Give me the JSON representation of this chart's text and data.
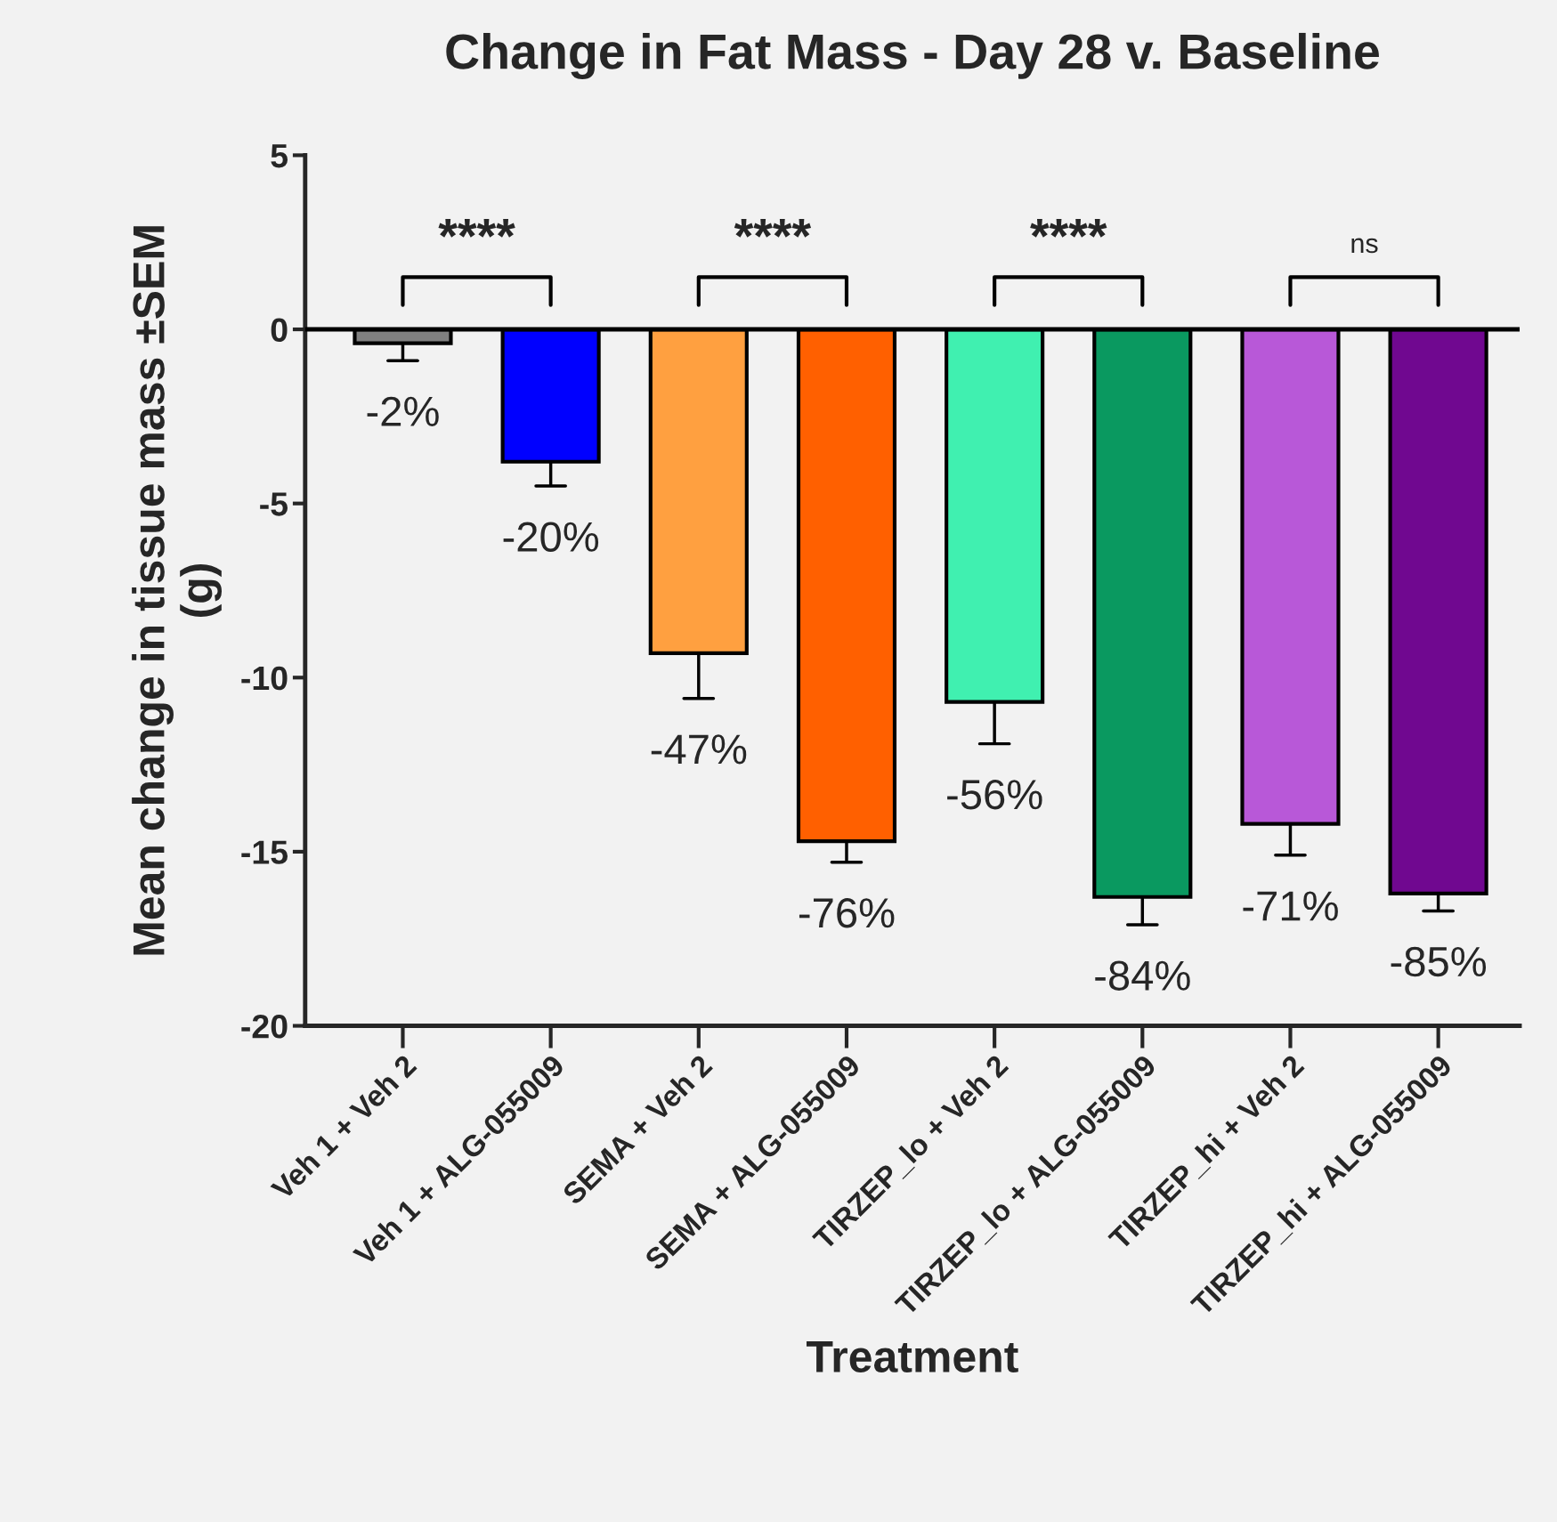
{
  "chart_data": {
    "type": "bar",
    "title": "Change in Fat Mass - Day 28 v. Baseline",
    "xlabel": "Treatment",
    "ylabel": "Mean change in tissue mass ±SEM\n(g)",
    "categories": [
      "Veh 1 + Veh 2",
      "Veh 1 + ALG-055009",
      "SEMA + Veh 2",
      "SEMA + ALG-055009",
      "TIRZEP_lo + Veh 2",
      "TIRZEP_lo + ALG-055009",
      "TIRZEP_hi + Veh 2",
      "TIRZEP_hi + ALG-055009"
    ],
    "values": [
      -0.4,
      -3.8,
      -9.3,
      -14.7,
      -10.7,
      -16.3,
      -14.2,
      -16.2
    ],
    "errors": [
      [
        -0.9,
        -0.4
      ],
      [
        -4.5,
        -3.8
      ],
      [
        -10.6,
        -9.3
      ],
      [
        -15.3,
        -14.7
      ],
      [
        -11.9,
        -10.7
      ],
      [
        -17.1,
        -16.3
      ],
      [
        -15.1,
        -14.2
      ],
      [
        -16.7,
        -16.2
      ]
    ],
    "colors": [
      "#808080",
      "#0000ff",
      "#ffa040",
      "#ff6000",
      "#40f0b0",
      "#0a9960",
      "#b858d8",
      "#700890"
    ],
    "ylim": [
      -20,
      5
    ],
    "yticks": [
      -20,
      -15,
      -10,
      -5,
      0,
      5
    ],
    "grid": false,
    "legend": false,
    "ref_lines": [
      {
        "axis": "y",
        "value": 0
      }
    ],
    "annotations": [
      "****",
      "****",
      "****",
      "ns",
      {
        "text": "-2%",
        "x": "Veh 1 + Veh 2",
        "y": -0.9
      },
      {
        "text": "-20%",
        "x": "Veh 1 + ALG-055009",
        "y": -4.5
      },
      {
        "text": "-47%",
        "x": "SEMA + Veh 2",
        "y": -10.6
      },
      {
        "text": "-76%",
        "x": "SEMA + ALG-055009",
        "y": -15.3
      },
      {
        "text": "-56%",
        "x": "TIRZEP_lo + Veh 2",
        "y": -11.9
      },
      {
        "text": "-84%",
        "x": "TIRZEP_lo + ALG-055009",
        "y": -17.1
      },
      {
        "text": "-71%",
        "x": "TIRZEP_hi + Veh 2",
        "y": -15.1
      },
      {
        "text": "-85%",
        "x": "TIRZEP_hi + ALG-055009",
        "y": -16.7
      }
    ]
  }
}
